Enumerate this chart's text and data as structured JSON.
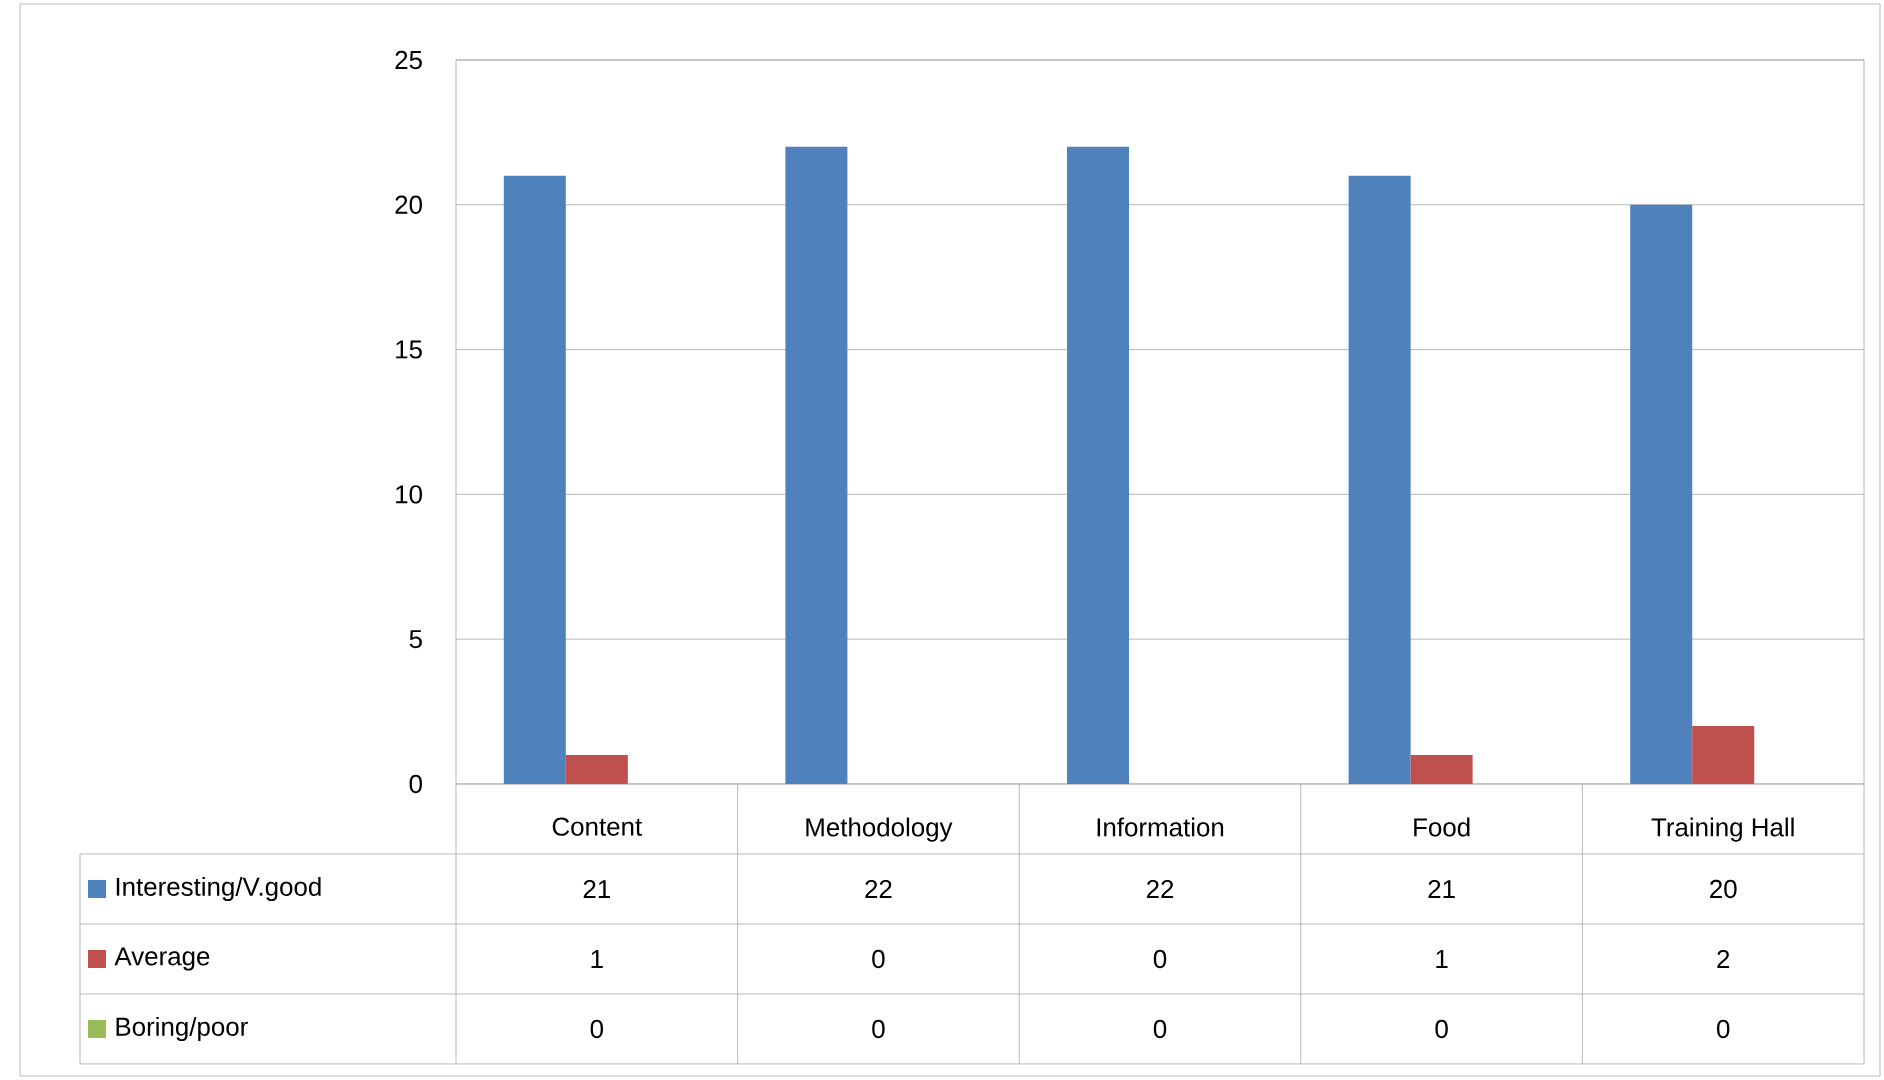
{
  "chart_data": {
    "type": "bar",
    "categories": [
      "Content",
      "Methodology",
      "Information",
      "Food",
      "Training Hall"
    ],
    "series": [
      {
        "name": "Interesting/V.good",
        "color": "#4f81bd",
        "values": [
          21,
          22,
          22,
          21,
          20
        ]
      },
      {
        "name": "Average",
        "color": "#c0504d",
        "values": [
          1,
          0,
          0,
          1,
          2
        ]
      },
      {
        "name": "Boring/poor",
        "color": "#9bbb59",
        "values": [
          0,
          0,
          0,
          0,
          0
        ]
      }
    ],
    "ylim": [
      0,
      25
    ],
    "yticks": [
      0,
      5,
      10,
      15,
      20,
      25
    ],
    "grid": "y",
    "legend": "bottom",
    "data_labels": true
  }
}
